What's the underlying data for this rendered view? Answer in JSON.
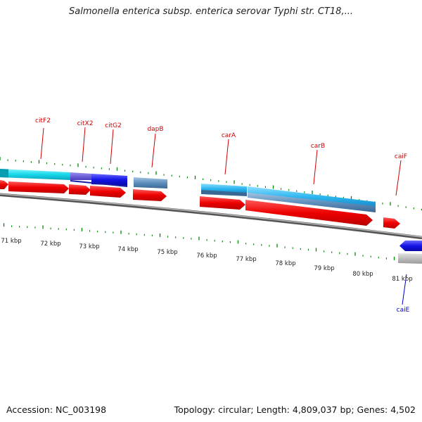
{
  "title": "Salmonella enterica subsp. enterica serovar Typhi str. CT18,...",
  "footer": {
    "accession": "Accession: NC_003198",
    "summary": "Topology: circular; Length: 4,809,037 bp; Genes: 4,502"
  },
  "colors": {
    "gene_label": "#cc0000",
    "gene_label_alt": "#0000cc",
    "tick": "#008800",
    "forward_cds": "#ff0000",
    "reverse_cds": "#1010e0",
    "backbone": "#808080"
  },
  "scale": {
    "ticks": [
      "71 kbp",
      "72 kbp",
      "73 kbp",
      "74 kbp",
      "75 kbp",
      "76 kbp",
      "77 kbp",
      "78 kbp",
      "79 kbp",
      "80 kbp",
      "81 kbp"
    ]
  },
  "genes": [
    {
      "name": "citF2",
      "strand": "forward"
    },
    {
      "name": "citX2",
      "strand": "forward"
    },
    {
      "name": "citG2",
      "strand": "forward"
    },
    {
      "name": "dapB",
      "strand": "forward"
    },
    {
      "name": "carA",
      "strand": "forward"
    },
    {
      "name": "carB",
      "strand": "forward"
    },
    {
      "name": "caiF",
      "strand": "forward"
    },
    {
      "name": "caiE",
      "strand": "reverse"
    }
  ]
}
